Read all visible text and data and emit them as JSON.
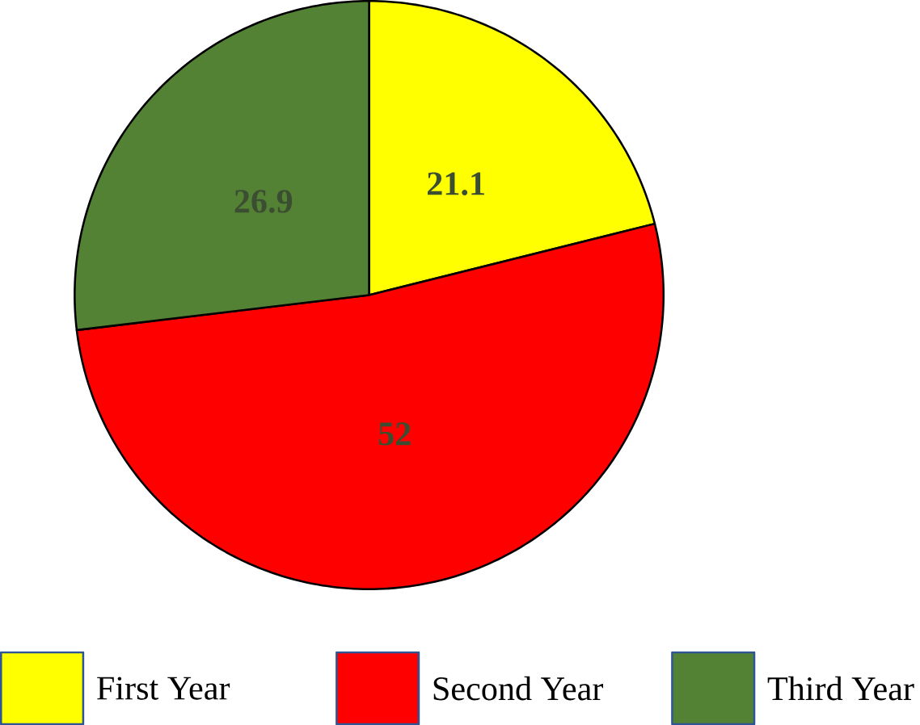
{
  "chart_data": {
    "type": "pie",
    "categories": [
      "First Year",
      "Second Year",
      "Third Year"
    ],
    "values": [
      21.1,
      52,
      26.9
    ],
    "colors": [
      "#ffff00",
      "#ff0000",
      "#548235"
    ],
    "data_labels": true,
    "legend": "bottom"
  }
}
